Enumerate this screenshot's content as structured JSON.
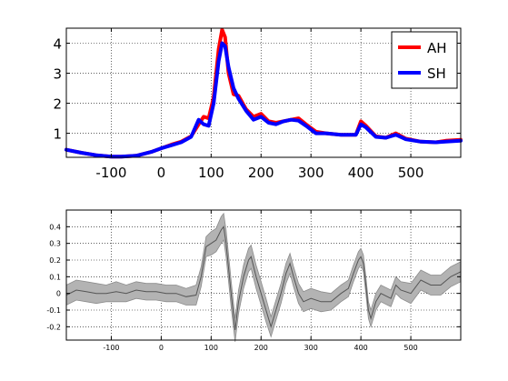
{
  "chart_data": [
    {
      "type": "line",
      "xlim": [
        -190,
        600
      ],
      "ylim": [
        0.2,
        4.5
      ],
      "xticks": [
        -100,
        0,
        100,
        200,
        300,
        400,
        500
      ],
      "yticks": [
        1,
        2,
        3,
        4
      ],
      "grid": true,
      "legend_placement": "top-right",
      "series": [
        {
          "name": "AH",
          "color": "#ff0000",
          "x": [
            -190,
            -160,
            -130,
            -100,
            -80,
            -50,
            -20,
            0,
            20,
            40,
            60,
            75,
            85,
            95,
            105,
            115,
            122,
            128,
            135,
            145,
            155,
            170,
            185,
            200,
            215,
            230,
            245,
            260,
            275,
            290,
            310,
            330,
            360,
            390,
            400,
            410,
            430,
            450,
            470,
            490,
            520,
            550,
            570,
            600
          ],
          "y": [
            0.45,
            0.35,
            0.27,
            0.22,
            0.22,
            0.25,
            0.38,
            0.5,
            0.62,
            0.72,
            0.9,
            1.3,
            1.55,
            1.5,
            2.2,
            3.8,
            4.45,
            4.2,
            3.0,
            2.3,
            2.25,
            1.8,
            1.55,
            1.65,
            1.4,
            1.35,
            1.4,
            1.45,
            1.5,
            1.3,
            1.05,
            1.0,
            0.95,
            0.95,
            1.4,
            1.25,
            0.9,
            0.85,
            1.0,
            0.82,
            0.72,
            0.7,
            0.75,
            0.78
          ]
        },
        {
          "name": "SH",
          "color": "#0000ff",
          "x": [
            -190,
            -160,
            -130,
            -100,
            -80,
            -50,
            -20,
            0,
            20,
            40,
            60,
            75,
            85,
            95,
            105,
            115,
            122,
            128,
            135,
            145,
            155,
            170,
            185,
            200,
            215,
            230,
            245,
            260,
            275,
            290,
            310,
            330,
            360,
            390,
            400,
            410,
            430,
            450,
            470,
            490,
            520,
            550,
            570,
            600
          ],
          "y": [
            0.45,
            0.35,
            0.27,
            0.22,
            0.22,
            0.25,
            0.38,
            0.5,
            0.6,
            0.7,
            0.88,
            1.45,
            1.3,
            1.25,
            2.0,
            3.4,
            4.0,
            3.9,
            3.2,
            2.5,
            2.15,
            1.75,
            1.45,
            1.55,
            1.35,
            1.3,
            1.4,
            1.45,
            1.42,
            1.25,
            1.0,
            1.0,
            0.95,
            0.95,
            1.3,
            1.2,
            0.88,
            0.85,
            0.95,
            0.8,
            0.72,
            0.7,
            0.72,
            0.75
          ]
        }
      ]
    },
    {
      "type": "area",
      "xlim": [
        -190,
        600
      ],
      "ylim": [
        -0.28,
        0.5
      ],
      "xticks": [
        -100,
        0,
        100,
        200,
        300,
        400,
        500
      ],
      "yticks": [
        -0.2,
        -0.1,
        0,
        0.1,
        0.2,
        0.3,
        0.4
      ],
      "grid": true,
      "series": [
        {
          "color": "#555555",
          "band_color": "#b3b3b3",
          "x": [
            -190,
            -170,
            -150,
            -130,
            -110,
            -90,
            -70,
            -50,
            -30,
            -10,
            10,
            30,
            50,
            70,
            80,
            90,
            100,
            110,
            120,
            125,
            130,
            140,
            148,
            155,
            165,
            175,
            180,
            190,
            200,
            210,
            220,
            230,
            240,
            250,
            258,
            265,
            275,
            285,
            300,
            320,
            340,
            360,
            375,
            385,
            395,
            400,
            405,
            410,
            415,
            420,
            430,
            440,
            460,
            470,
            480,
            500,
            520,
            540,
            560,
            580,
            600
          ],
          "y": [
            -0.01,
            0.02,
            0.01,
            0.0,
            0.0,
            0.01,
            0.0,
            0.02,
            0.01,
            0.01,
            0.0,
            0.0,
            -0.02,
            -0.01,
            0.1,
            0.28,
            0.3,
            0.32,
            0.38,
            0.4,
            0.3,
            0.0,
            -0.22,
            -0.05,
            0.1,
            0.2,
            0.22,
            0.1,
            0.0,
            -0.1,
            -0.2,
            -0.1,
            0.0,
            0.12,
            0.18,
            0.1,
            0.0,
            -0.05,
            -0.03,
            -0.05,
            -0.05,
            0.0,
            0.03,
            0.12,
            0.2,
            0.22,
            0.18,
            0.05,
            -0.1,
            -0.15,
            -0.05,
            0.0,
            -0.03,
            0.05,
            0.02,
            0.0,
            0.08,
            0.05,
            0.05,
            0.1,
            0.13
          ],
          "err": [
            0.06,
            0.06,
            0.06,
            0.06,
            0.05,
            0.06,
            0.05,
            0.05,
            0.05,
            0.05,
            0.05,
            0.05,
            0.05,
            0.06,
            0.06,
            0.06,
            0.07,
            0.07,
            0.08,
            0.08,
            0.08,
            0.08,
            0.07,
            0.07,
            0.07,
            0.07,
            0.07,
            0.07,
            0.07,
            0.07,
            0.06,
            0.06,
            0.06,
            0.06,
            0.06,
            0.06,
            0.06,
            0.06,
            0.06,
            0.06,
            0.05,
            0.05,
            0.05,
            0.05,
            0.05,
            0.05,
            0.05,
            0.05,
            0.05,
            0.05,
            0.05,
            0.05,
            0.05,
            0.05,
            0.05,
            0.06,
            0.06,
            0.06,
            0.06,
            0.06,
            0.06
          ]
        }
      ]
    }
  ]
}
